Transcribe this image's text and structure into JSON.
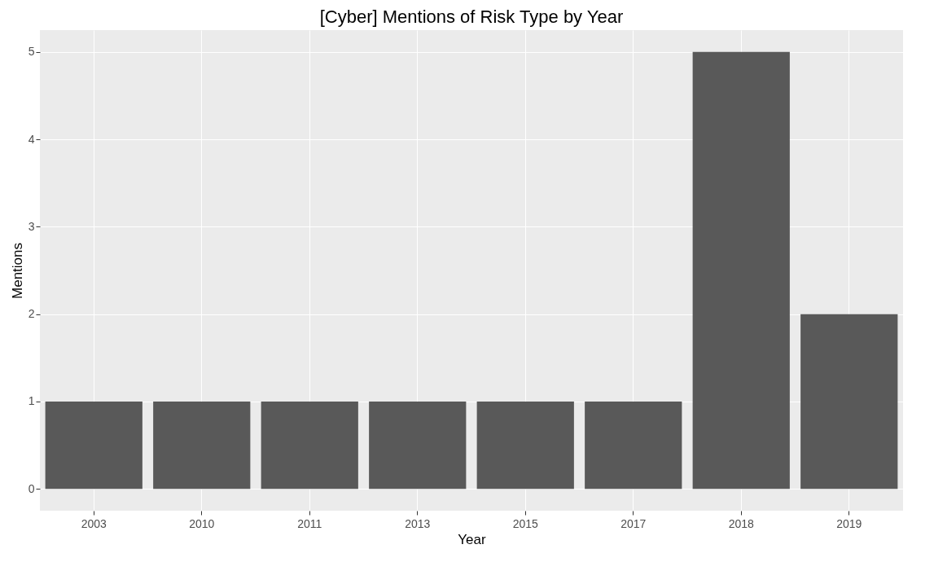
{
  "chart_data": {
    "type": "bar",
    "title": "[Cyber] Mentions of Risk Type by Year",
    "xlabel": "Year",
    "ylabel": "Mentions",
    "categories": [
      "2003",
      "2010",
      "2011",
      "2013",
      "2015",
      "2017",
      "2018",
      "2019"
    ],
    "values": [
      1,
      1,
      1,
      1,
      1,
      1,
      5,
      2
    ],
    "color": "#595959",
    "ylim": [
      -0.25,
      5.25
    ],
    "yticks": [
      0,
      1,
      2,
      3,
      4,
      5
    ],
    "grid": true
  }
}
